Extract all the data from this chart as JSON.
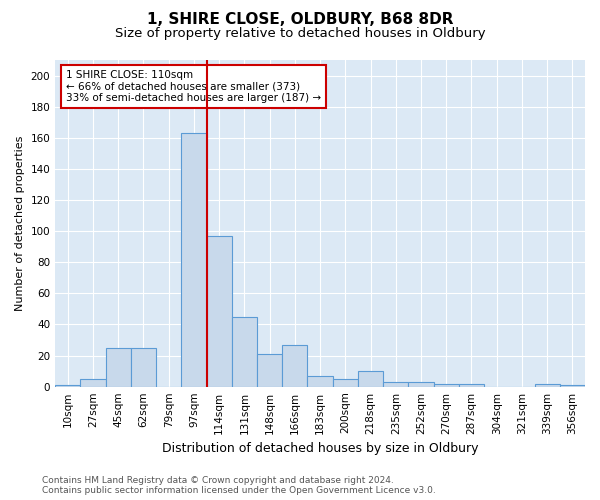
{
  "title": "1, SHIRE CLOSE, OLDBURY, B68 8DR",
  "subtitle": "Size of property relative to detached houses in Oldbury",
  "xlabel": "Distribution of detached houses by size in Oldbury",
  "ylabel": "Number of detached properties",
  "footnote": "Contains HM Land Registry data © Crown copyright and database right 2024.\nContains public sector information licensed under the Open Government Licence v3.0.",
  "bin_labels": [
    "10sqm",
    "27sqm",
    "45sqm",
    "62sqm",
    "79sqm",
    "97sqm",
    "114sqm",
    "131sqm",
    "148sqm",
    "166sqm",
    "183sqm",
    "200sqm",
    "218sqm",
    "235sqm",
    "252sqm",
    "270sqm",
    "287sqm",
    "304sqm",
    "321sqm",
    "339sqm",
    "356sqm"
  ],
  "bar_heights": [
    1,
    5,
    25,
    25,
    0,
    163,
    97,
    45,
    21,
    27,
    7,
    5,
    10,
    3,
    3,
    2,
    2,
    0,
    0,
    2,
    1
  ],
  "bar_color": "#c8d9eb",
  "bar_edge_color": "#5b9bd5",
  "red_line_x": 5.5,
  "red_line_color": "#cc0000",
  "annotation_text": "1 SHIRE CLOSE: 110sqm\n← 66% of detached houses are smaller (373)\n33% of semi-detached houses are larger (187) →",
  "annotation_box_edge": "#cc0000",
  "ylim": [
    0,
    210
  ],
  "yticks": [
    0,
    20,
    40,
    60,
    80,
    100,
    120,
    140,
    160,
    180,
    200
  ],
  "plot_bg_color": "#dce9f5",
  "title_fontsize": 11,
  "subtitle_fontsize": 9.5,
  "xlabel_fontsize": 9,
  "ylabel_fontsize": 8,
  "tick_fontsize": 7.5,
  "annotation_fontsize": 7.5,
  "footnote_fontsize": 6.5
}
